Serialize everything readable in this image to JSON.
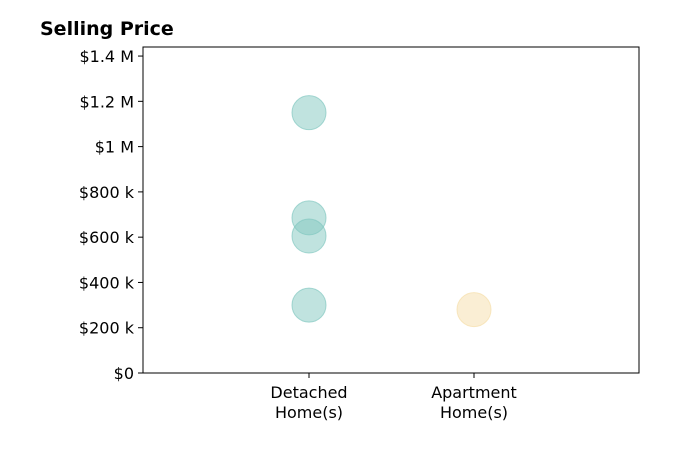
{
  "chart_data": {
    "type": "scatter",
    "title": "Selling Price",
    "xlabel": "",
    "ylabel": "",
    "categories": [
      "Detached\nHome(s)",
      "Apartment\nHome(s)"
    ],
    "ylim": [
      0,
      1440000
    ],
    "yticks": [
      {
        "value": 0,
        "label": "$0"
      },
      {
        "value": 200000,
        "label": "$200 k"
      },
      {
        "value": 400000,
        "label": "$400 k"
      },
      {
        "value": 600000,
        "label": "$600 k"
      },
      {
        "value": 800000,
        "label": "$800 k"
      },
      {
        "value": 1000000,
        "label": "$1 M"
      },
      {
        "value": 1200000,
        "label": "$1.2 M"
      },
      {
        "value": 1400000,
        "label": "$1.4 M"
      }
    ],
    "grid": false,
    "series": [
      {
        "category": "Detached\nHome(s)",
        "color": "#82c8c0",
        "values": [
          1150000,
          685000,
          605000,
          300000
        ]
      },
      {
        "category": "Apartment\nHome(s)",
        "color": "#f5deaa",
        "values": [
          280000
        ]
      }
    ]
  }
}
